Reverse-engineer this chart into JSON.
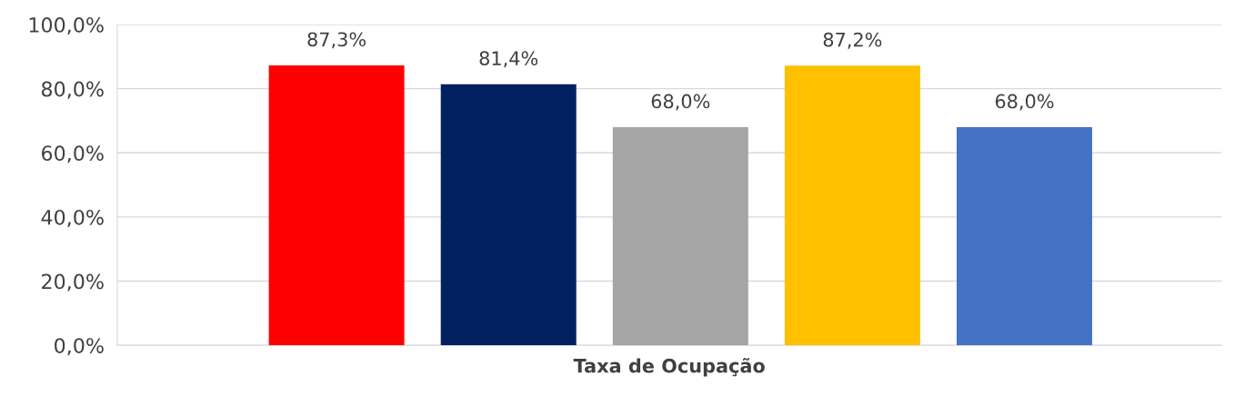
{
  "chart_data": {
    "type": "bar",
    "categories": [
      "Taxa de Ocupação"
    ],
    "series": [
      {
        "color": "#ff0000",
        "values": [
          87.3
        ],
        "value_labels": [
          "87,3%"
        ]
      },
      {
        "color": "#002060",
        "values": [
          81.4
        ],
        "value_labels": [
          "81,4%"
        ]
      },
      {
        "color": "#a5a5a5",
        "values": [
          68.0
        ],
        "value_labels": [
          "68,0%"
        ]
      },
      {
        "color": "#ffc000",
        "values": [
          87.2
        ],
        "value_labels": [
          "87,2%"
        ]
      },
      {
        "color": "#4472c4",
        "values": [
          68.0
        ],
        "value_labels": [
          "68,0%"
        ]
      }
    ],
    "ylim": [
      0,
      100
    ],
    "yticks": [
      {
        "value": 0,
        "label": "0,0%"
      },
      {
        "value": 20,
        "label": "20,0%"
      },
      {
        "value": 40,
        "label": "40,0%"
      },
      {
        "value": 60,
        "label": "60,0%"
      },
      {
        "value": 80,
        "label": "80,0%"
      },
      {
        "value": 100,
        "label": "100,0%"
      }
    ],
    "grid": "y"
  }
}
